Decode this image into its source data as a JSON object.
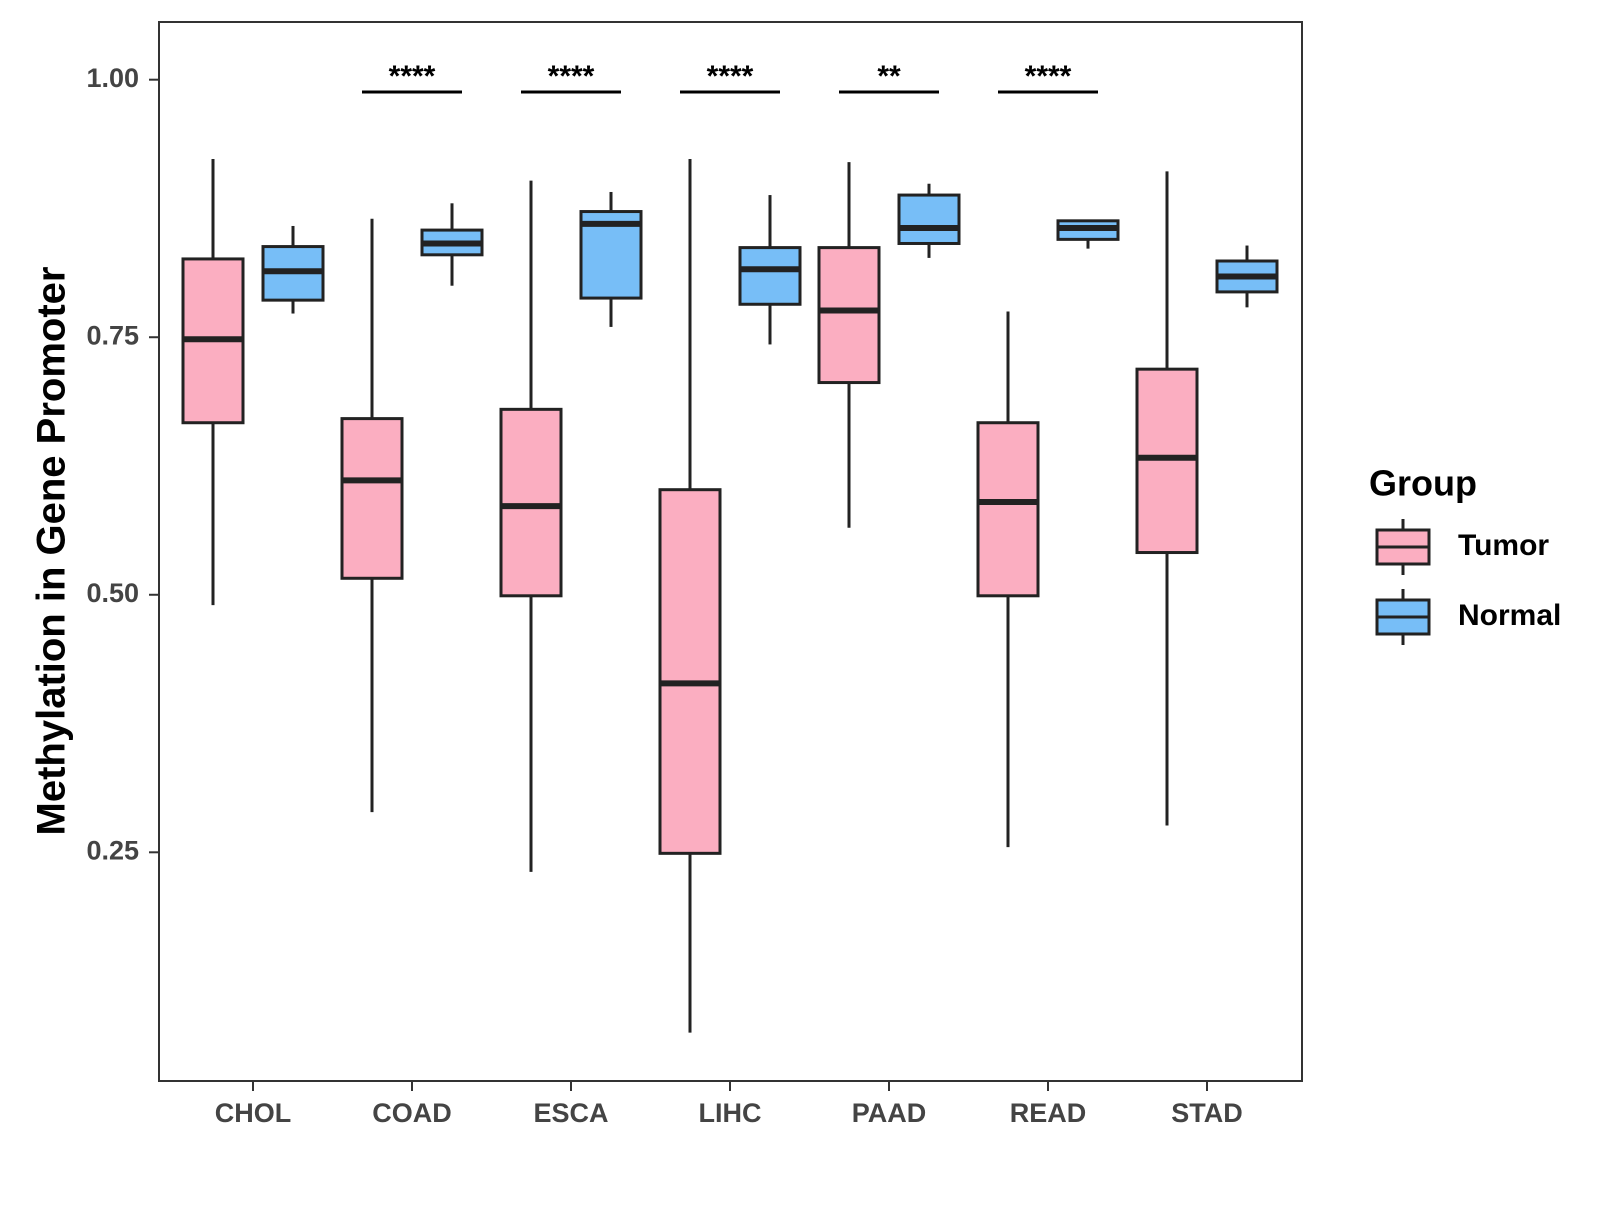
{
  "chart_data": {
    "type": "boxplot",
    "title": "",
    "xlabel": "",
    "ylabel": "Methylation in Gene Promoter",
    "ylim": [
      0.028,
      1.056
    ],
    "yticks": [
      0.25,
      0.5,
      0.75,
      1.0
    ],
    "ytick_labels": [
      "0.25",
      "0.50",
      "0.75",
      "1.00"
    ],
    "categories": [
      "CHOL",
      "COAD",
      "ESCA",
      "LIHC",
      "PAAD",
      "READ",
      "STAD"
    ],
    "legend": {
      "title": "Group",
      "position": "right",
      "entries": [
        {
          "name": "Tumor",
          "color": "#FBAEC1"
        },
        {
          "name": "Normal",
          "color": "#77BEF7"
        }
      ]
    },
    "series": [
      {
        "name": "Tumor",
        "color": "#FBAEC1",
        "boxes": [
          {
            "category": "CHOL",
            "whisker_low": 0.49,
            "q1": 0.667,
            "median": 0.748,
            "q3": 0.826,
            "whisker_high": 0.923
          },
          {
            "category": "COAD",
            "whisker_low": 0.289,
            "q1": 0.516,
            "median": 0.611,
            "q3": 0.671,
            "whisker_high": 0.865
          },
          {
            "category": "ESCA",
            "whisker_low": 0.231,
            "q1": 0.499,
            "median": 0.586,
            "q3": 0.68,
            "whisker_high": 0.902
          },
          {
            "category": "LIHC",
            "whisker_low": 0.075,
            "q1": 0.249,
            "median": 0.414,
            "q3": 0.602,
            "whisker_high": 0.923
          },
          {
            "category": "PAAD",
            "whisker_low": 0.565,
            "q1": 0.706,
            "median": 0.776,
            "q3": 0.837,
            "whisker_high": 0.92
          },
          {
            "category": "READ",
            "whisker_low": 0.255,
            "q1": 0.499,
            "median": 0.59,
            "q3": 0.667,
            "whisker_high": 0.775
          },
          {
            "category": "STAD",
            "whisker_low": 0.276,
            "q1": 0.541,
            "median": 0.633,
            "q3": 0.719,
            "whisker_high": 0.911
          }
        ]
      },
      {
        "name": "Normal",
        "color": "#77BEF7",
        "boxes": [
          {
            "category": "CHOL",
            "whisker_low": 0.773,
            "q1": 0.786,
            "median": 0.814,
            "q3": 0.838,
            "whisker_high": 0.858
          },
          {
            "category": "COAD",
            "whisker_low": 0.8,
            "q1": 0.83,
            "median": 0.841,
            "q3": 0.854,
            "whisker_high": 0.88
          },
          {
            "category": "ESCA",
            "whisker_low": 0.76,
            "q1": 0.788,
            "median": 0.86,
            "q3": 0.872,
            "whisker_high": 0.891
          },
          {
            "category": "LIHC",
            "whisker_low": 0.743,
            "q1": 0.782,
            "median": 0.816,
            "q3": 0.837,
            "whisker_high": 0.888
          },
          {
            "category": "PAAD",
            "whisker_low": 0.827,
            "q1": 0.841,
            "median": 0.856,
            "q3": 0.888,
            "whisker_high": 0.899
          },
          {
            "category": "READ",
            "whisker_low": 0.836,
            "q1": 0.845,
            "median": 0.856,
            "q3": 0.863,
            "whisker_high": 0.864
          },
          {
            "category": "STAD",
            "whisker_low": 0.779,
            "q1": 0.794,
            "median": 0.809,
            "q3": 0.824,
            "whisker_high": 0.839
          }
        ]
      }
    ],
    "significance": [
      {
        "category": "COAD",
        "label": "****"
      },
      {
        "category": "ESCA",
        "label": "****"
      },
      {
        "category": "LIHC",
        "label": "****"
      },
      {
        "category": "PAAD",
        "label": "**"
      },
      {
        "category": "READ",
        "label": "****"
      }
    ],
    "significance_level": 0.988,
    "colors": {
      "stroke": "#222222",
      "axis": "#333333"
    }
  }
}
